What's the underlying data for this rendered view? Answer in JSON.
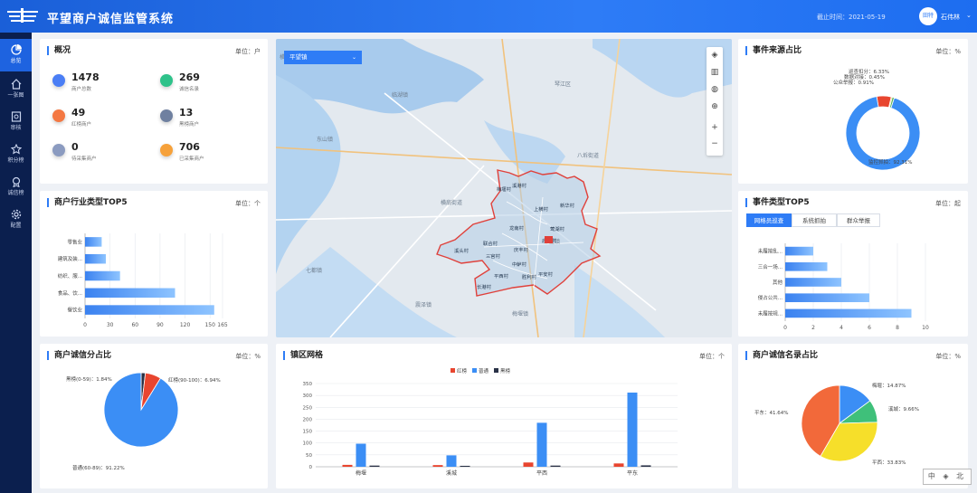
{
  "header": {
    "title": "平望商户诚信监管系统",
    "date_label": "截止时间：2021-05-19",
    "avatar_text": "田特",
    "user": "石伟林"
  },
  "sidebar": {
    "items": [
      {
        "label": "总览",
        "icon": "pie-chart-icon"
      },
      {
        "label": "一张图",
        "icon": "home-icon"
      },
      {
        "label": "审核",
        "icon": "audit-icon"
      },
      {
        "label": "积分榜",
        "icon": "star-icon"
      },
      {
        "label": "诚信榜",
        "icon": "medal-icon"
      },
      {
        "label": "配置",
        "icon": "gear-icon"
      }
    ]
  },
  "overview": {
    "title": "概况",
    "unit": "单位：户",
    "items": [
      {
        "value": "1478",
        "label": "商户总数",
        "color": "#4a7ef5"
      },
      {
        "value": "269",
        "label": "诚信名录",
        "color": "#2ec28a"
      },
      {
        "value": "49",
        "label": "红榜商户",
        "color": "#f47842"
      },
      {
        "value": "13",
        "label": "黑榜商户",
        "color": "#6f80a0"
      },
      {
        "value": "0",
        "label": "待采集商户",
        "color": "#8b9bc0"
      },
      {
        "value": "706",
        "label": "已采集商户",
        "color": "#f6a13a"
      }
    ]
  },
  "industry": {
    "title": "商户行业类型TOP5",
    "unit": "单位：个"
  },
  "source": {
    "title": "事件来源占比",
    "unit": "单位：%"
  },
  "events": {
    "title": "事件类型TOP5",
    "unit": "单位：起",
    "tabs": [
      "网格员巡查",
      "系统抓拍",
      "群众举报"
    ]
  },
  "credit": {
    "title": "商户诚信分占比",
    "unit": "单位：%"
  },
  "grid": {
    "title": "镇区网格",
    "unit": "单位：个"
  },
  "directory": {
    "title": "商户诚信名录占比",
    "unit": "单位：%"
  },
  "map": {
    "select": "平望镇",
    "labels": [
      "横泾街道",
      "琴江区",
      "临湖镇",
      "东山镇",
      "八坼街道",
      "横扇街道",
      "七都镇",
      "震泽镇",
      "梅堰镇",
      "平望镇"
    ],
    "villages": [
      "梅堰村",
      "溪港村",
      "上横村",
      "新华村",
      "莺湖村",
      "龙南村",
      "联合村",
      "三官村",
      "中鲈村",
      "平西村",
      "平安村",
      "长港村",
      "庙头村",
      "溪头村",
      "庆丰村",
      "胜利村"
    ]
  },
  "watermark": "中 ◈ 北",
  "chart_data": [
    {
      "type": "bar",
      "orientation": "horizontal",
      "categories": [
        "零售业",
        "建筑及装...",
        "纺织、服...",
        "食品、饮...",
        "餐饮业"
      ],
      "values": [
        20,
        25,
        42,
        108,
        155
      ],
      "xlim": [
        0,
        165
      ],
      "xticks": [
        "0",
        "30",
        "60",
        "90",
        "120",
        "150",
        "165"
      ]
    },
    {
      "type": "pie",
      "donut": true,
      "slices": [
        {
          "label": "巡查扣分：6.33%",
          "value": 6.33,
          "color": "#e8452f"
        },
        {
          "label": "数据对接：0.45%",
          "value": 0.45,
          "color": "#f4b400"
        },
        {
          "label": "公众举报：0.91%",
          "value": 0.91,
          "color": "#5ab65a"
        },
        {
          "label": "监控抓拍：92.31%",
          "value": 92.31,
          "color": "#3b8ef5"
        }
      ]
    },
    {
      "type": "bar",
      "orientation": "horizontal",
      "categories": [
        "未履按乱...",
        "三合一场...",
        "其他",
        "侵占公共...",
        "未履按规..."
      ],
      "values": [
        2,
        3,
        4,
        6,
        9
      ],
      "xlim": [
        0,
        10
      ],
      "xticks": [
        "0",
        "2",
        "4",
        "6",
        "8",
        "10"
      ]
    },
    {
      "type": "pie",
      "slices": [
        {
          "label": "黑榜(0-59)：1.84%",
          "value": 1.84,
          "color": "#2a3247"
        },
        {
          "label": "红榜(90-100)：6.94%",
          "value": 6.94,
          "color": "#e8452f"
        },
        {
          "label": "普通(60-89)：91.22%",
          "value": 91.22,
          "color": "#3b8ef5"
        }
      ]
    },
    {
      "type": "bar",
      "categories": [
        "梅堰",
        "溪城",
        "平西",
        "平东"
      ],
      "series": [
        {
          "name": "红榜",
          "color": "#e8452f",
          "values": [
            8,
            7,
            18,
            14
          ]
        },
        {
          "name": "普通",
          "color": "#3b8ef5",
          "values": [
            97,
            48,
            185,
            312
          ]
        },
        {
          "name": "黑榜",
          "color": "#2a3247",
          "values": [
            5,
            4,
            5,
            6
          ]
        }
      ],
      "ylim": [
        0,
        350
      ],
      "yticks": [
        "0",
        "50",
        "100",
        "150",
        "200",
        "250",
        "300",
        "350"
      ]
    },
    {
      "type": "pie",
      "slices": [
        {
          "label": "梅堰：14.87%",
          "value": 14.87,
          "color": "#3b8ef5"
        },
        {
          "label": "溪城：9.66%",
          "value": 9.66,
          "color": "#3fc07a"
        },
        {
          "label": "平西：33.83%",
          "value": 33.83,
          "color": "#f6df2a"
        },
        {
          "label": "平东：41.64%",
          "value": 41.64,
          "color": "#f2693a"
        }
      ]
    }
  ]
}
